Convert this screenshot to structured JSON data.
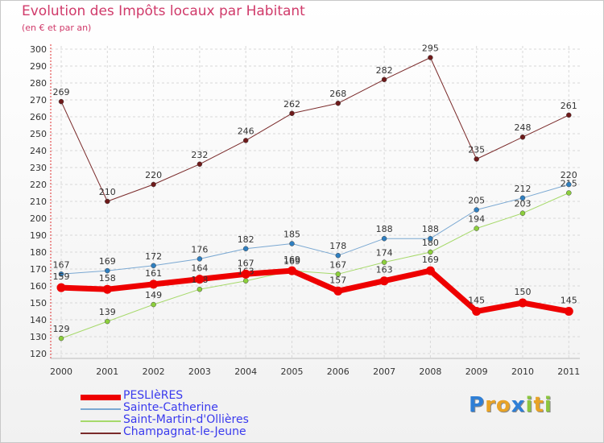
{
  "title": "Evolution des Impôts locaux par Habitant",
  "subtitle": "(en € et par an)",
  "logo_letters": [
    {
      "ch": "P",
      "color": "#2f7fd6"
    },
    {
      "ch": "r",
      "color": "#e8a326"
    },
    {
      "ch": "o",
      "color": "#e8a326"
    },
    {
      "ch": "x",
      "color": "#2f7fd6"
    },
    {
      "ch": "i",
      "color": "#8cc63f"
    },
    {
      "ch": "t",
      "color": "#e8a326"
    },
    {
      "ch": "i",
      "color": "#8cc63f"
    }
  ],
  "chart_data": {
    "type": "line",
    "title": "Evolution des Impôts locaux par Habitant",
    "subtitle": "(en € et par an)",
    "xlabel": "",
    "ylabel": "",
    "categories": [
      "2000",
      "2001",
      "2002",
      "2003",
      "2004",
      "2005",
      "2006",
      "2007",
      "2008",
      "2009",
      "2010",
      "2011"
    ],
    "ylim": [
      120,
      300
    ],
    "yticks": [
      120,
      130,
      140,
      150,
      160,
      170,
      180,
      190,
      200,
      210,
      220,
      230,
      240,
      250,
      260,
      270,
      280,
      290,
      300
    ],
    "grid": true,
    "legend_position": "bottom-left",
    "series": [
      {
        "name": "Champagnat-le-Jeune",
        "color": "#7a2a2a",
        "pointColor": "#6e1a1a",
        "width": 1,
        "values": [
          269,
          210,
          220,
          232,
          246,
          262,
          268,
          282,
          295,
          235,
          248,
          261
        ]
      },
      {
        "name": "Saint-Martin-d'Ollières",
        "color": "#a6d96a",
        "pointColor": "#8ccf3c",
        "width": 1,
        "values": [
          129,
          139,
          149,
          158,
          163,
          169,
          167,
          174,
          180,
          194,
          203,
          215
        ]
      },
      {
        "name": "Sainte-Catherine",
        "color": "#7aa8d2",
        "pointColor": "#2f7fc0",
        "width": 1,
        "values": [
          167,
          169,
          172,
          176,
          182,
          185,
          178,
          188,
          188,
          205,
          212,
          220
        ]
      },
      {
        "name": "PESLIèRES",
        "color": "#ee0000",
        "pointColor": "#ee0000",
        "width": 7,
        "values": [
          159,
          158,
          161,
          164,
          167,
          169,
          157,
          163,
          169,
          145,
          150,
          145
        ]
      }
    ],
    "legend": [
      {
        "name": "PESLIèRES",
        "color": "#ee0000",
        "textColor": "#3a3aee",
        "width": 7
      },
      {
        "name": "Sainte-Catherine",
        "color": "#7aa8d2",
        "textColor": "#3a3aee",
        "width": 2
      },
      {
        "name": "Saint-Martin-d'Ollières",
        "color": "#a6d96a",
        "textColor": "#3a3aee",
        "width": 2
      },
      {
        "name": "Champagnat-le-Jeune",
        "color": "#7a2a2a",
        "textColor": "#3a3aee",
        "width": 2
      }
    ]
  }
}
